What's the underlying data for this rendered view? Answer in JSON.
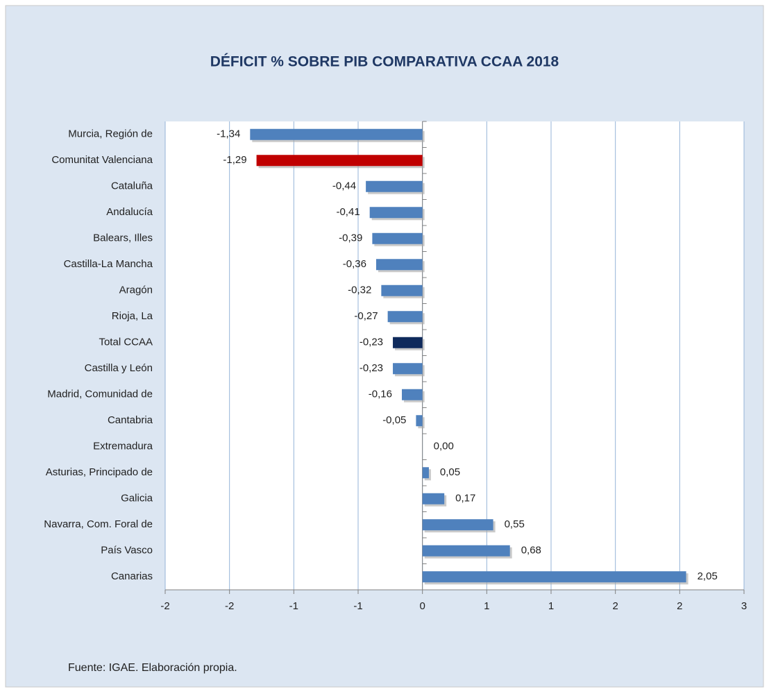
{
  "chart_data": {
    "type": "hbar",
    "title": "DÉFICIT % SOBRE PIB COMPARATIVA CCAA 2018",
    "source": "Fuente: IGAE. Elaboración propia.",
    "categories": [
      "Murcia, Región de",
      "Comunitat Valenciana",
      "Cataluña",
      "Andalucía",
      "Balears, Illes",
      "Castilla-La Mancha",
      "Aragón",
      "Rioja, La",
      "Total  CCAA",
      "Castilla y León",
      "Madrid, Comunidad de",
      "Cantabria",
      "Extremadura",
      "Asturias, Principado de",
      "Galicia",
      "Navarra, Com. Foral de",
      "País Vasco",
      "Canarias"
    ],
    "values": [
      -1.34,
      -1.29,
      -0.44,
      -0.41,
      -0.39,
      -0.36,
      -0.32,
      -0.27,
      -0.23,
      -0.23,
      -0.16,
      -0.05,
      0,
      0.05,
      0.17,
      0.55,
      0.68,
      2.05
    ],
    "value_labels": [
      "-1,34",
      "-1,29",
      "-0,44",
      "-0,41",
      "-0,39",
      "-0,36",
      "-0,32",
      "-0,27",
      "-0,23",
      "-0,23",
      "-0,16",
      "-0,05",
      "0,00",
      "0,05",
      "0,17",
      "0,55",
      "0,68",
      "2,05"
    ],
    "colors": [
      "#4f81bd",
      "#c00000",
      "#4f81bd",
      "#4f81bd",
      "#4f81bd",
      "#4f81bd",
      "#4f81bd",
      "#4f81bd",
      "#0f2a5c",
      "#4f81bd",
      "#4f81bd",
      "#4f81bd",
      "#4f81bd",
      "#4f81bd",
      "#4f81bd",
      "#4f81bd",
      "#4f81bd",
      "#4f81bd"
    ],
    "xlim": [
      -2,
      2.5
    ],
    "xticks": [
      -2,
      {
        "value": -1.5,
        "label": "-2"
      },
      -1,
      {
        "value": -0.5,
        "label": "-1"
      },
      0,
      {
        "value": 0.5,
        "label": "1"
      },
      1,
      {
        "value": 1.5,
        "label": "2"
      },
      2,
      {
        "value": 2.5,
        "label": "3"
      }
    ],
    "grid": true
  }
}
